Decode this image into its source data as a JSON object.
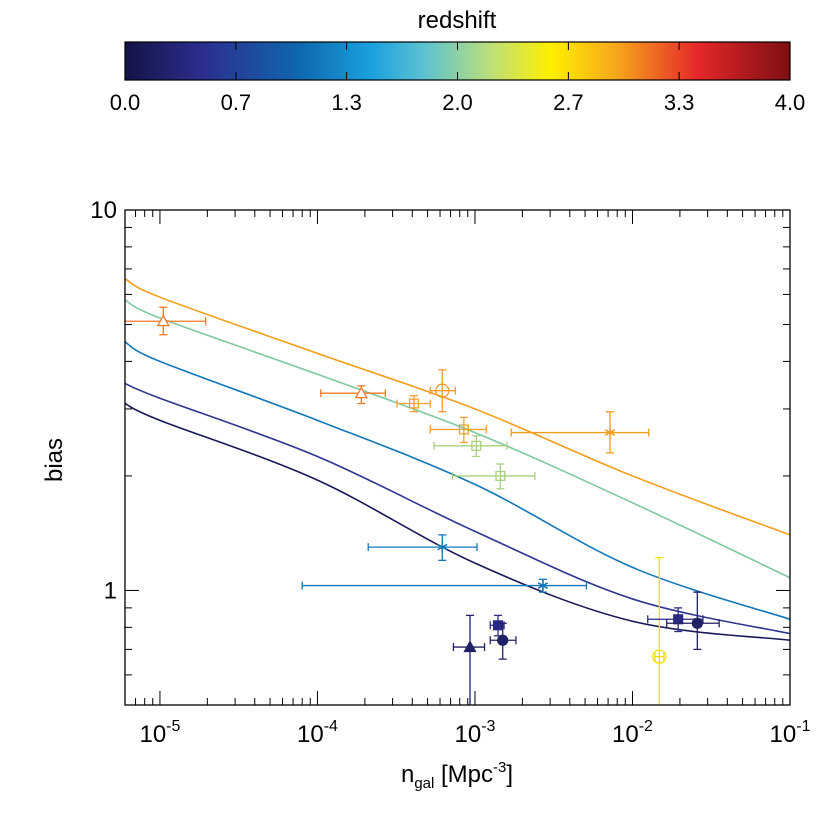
{
  "chart_data": {
    "type": "scatter",
    "title": "",
    "xlabel": "n",
    "xlabel_sub": "gal",
    "xlabel_unit_prefix": " [Mpc",
    "xlabel_unit_exp": "-3",
    "xlabel_unit_suffix": "]",
    "ylabel": "bias",
    "xscale": "log",
    "yscale": "log",
    "xlim": [
      6e-06,
      0.1
    ],
    "ylim": [
      0.5,
      10
    ],
    "x_ticks": [
      {
        "base": "10",
        "exp": "-5",
        "value": 1e-05
      },
      {
        "base": "10",
        "exp": "-4",
        "value": 0.0001
      },
      {
        "base": "10",
        "exp": "-3",
        "value": 0.001
      },
      {
        "base": "10",
        "exp": "-2",
        "value": 0.01
      },
      {
        "base": "10",
        "exp": "-1",
        "value": 0.1
      }
    ],
    "y_ticks": [
      {
        "label": "1",
        "value": 1
      },
      {
        "label": "10",
        "value": 10
      }
    ],
    "colorbar": {
      "label": "redshift",
      "range": [
        0,
        4
      ],
      "tick_labels": [
        "0.0",
        "0.7",
        "1.3",
        "2.0",
        "2.7",
        "3.3",
        "4.0"
      ],
      "tick_values": [
        0,
        0.667,
        1.333,
        2.0,
        2.667,
        3.333,
        4.0
      ]
    },
    "curves": [
      {
        "color": "#f39c1a",
        "points": [
          [
            6e-06,
            6.6
          ],
          [
            1e-05,
            5.9
          ],
          [
            0.0001,
            4.2
          ],
          [
            0.001,
            3.0
          ],
          [
            0.01,
            2.0
          ],
          [
            0.1,
            1.4
          ]
        ]
      },
      {
        "color": "#7fc8a0",
        "points": [
          [
            6e-06,
            5.8
          ],
          [
            1e-05,
            5.2
          ],
          [
            0.0001,
            3.7
          ],
          [
            0.001,
            2.6
          ],
          [
            0.01,
            1.7
          ],
          [
            0.1,
            1.08
          ]
        ]
      },
      {
        "color": "#1177b8",
        "points": [
          [
            6e-06,
            4.5
          ],
          [
            1e-05,
            4.0
          ],
          [
            0.0001,
            2.8
          ],
          [
            0.001,
            1.9
          ],
          [
            0.01,
            1.15
          ],
          [
            0.1,
            0.84
          ]
        ]
      },
      {
        "color": "#2e3590",
        "points": [
          [
            6e-06,
            3.5
          ],
          [
            1e-05,
            3.2
          ],
          [
            0.0001,
            2.25
          ],
          [
            0.001,
            1.43
          ],
          [
            0.01,
            0.95
          ],
          [
            0.1,
            0.77
          ]
        ]
      },
      {
        "color": "#181858",
        "points": [
          [
            6e-06,
            3.1
          ],
          [
            1e-05,
            2.8
          ],
          [
            0.0001,
            1.95
          ],
          [
            0.001,
            1.18
          ],
          [
            0.01,
            0.83
          ],
          [
            0.1,
            0.74
          ]
        ]
      }
    ],
    "points": [
      {
        "x": 1.05e-05,
        "y": 5.1,
        "xlo": 5.8e-06,
        "xhi": 1.95e-05,
        "ylo": 4.7,
        "yhi": 5.55,
        "marker": "triangle-open",
        "color": "#f07a2a"
      },
      {
        "x": 0.00019,
        "y": 3.3,
        "xlo": 0.000105,
        "xhi": 0.00027,
        "ylo": 3.1,
        "yhi": 3.45,
        "marker": "triangle-open",
        "color": "#f07a2a"
      },
      {
        "x": 0.00062,
        "y": 3.35,
        "xlo": 0.00052,
        "xhi": 0.00075,
        "ylo": 2.95,
        "yhi": 3.8,
        "marker": "circle-open",
        "color": "#f59a2c"
      },
      {
        "x": 0.00041,
        "y": 3.1,
        "xlo": 0.00032,
        "xhi": 0.00052,
        "ylo": 2.95,
        "yhi": 3.25,
        "marker": "square-open",
        "color": "#f5a030"
      },
      {
        "x": 0.00085,
        "y": 2.65,
        "xlo": 0.00052,
        "xhi": 0.00118,
        "ylo": 2.45,
        "yhi": 2.85,
        "marker": "square-open",
        "color": "#f5a030"
      },
      {
        "x": 0.0072,
        "y": 2.6,
        "xlo": 0.0017,
        "xhi": 0.0127,
        "ylo": 2.3,
        "yhi": 2.95,
        "marker": "star",
        "color": "#f39c1a"
      },
      {
        "x": 0.00102,
        "y": 2.4,
        "xlo": 0.00055,
        "xhi": 0.0016,
        "ylo": 2.25,
        "yhi": 2.55,
        "marker": "square-open",
        "color": "#a8d080"
      },
      {
        "x": 0.00145,
        "y": 2.0,
        "xlo": 0.00072,
        "xhi": 0.0024,
        "ylo": 1.85,
        "yhi": 2.15,
        "marker": "square-open",
        "color": "#a8d080"
      },
      {
        "x": 0.00062,
        "y": 1.3,
        "xlo": 0.00021,
        "xhi": 0.00103,
        "ylo": 1.2,
        "yhi": 1.4,
        "marker": "star",
        "color": "#1177b8"
      },
      {
        "x": 0.0027,
        "y": 1.03,
        "xlo": 8e-05,
        "xhi": 0.0051,
        "ylo": 0.99,
        "yhi": 1.07,
        "marker": "star",
        "color": "#1177b8"
      },
      {
        "x": 0.0148,
        "y": 0.67,
        "xlo": 0.0139,
        "xhi": 0.0158,
        "ylo": 0.5,
        "yhi": 1.22,
        "marker": "circle-open",
        "color": "#f5e000"
      },
      {
        "x": 0.00093,
        "y": 0.71,
        "xlo": 0.00073,
        "xhi": 0.00115,
        "ylo": 0.5,
        "yhi": 0.86,
        "marker": "triangle-filled",
        "color": "#202065"
      },
      {
        "x": 0.0014,
        "y": 0.81,
        "xlo": 0.00125,
        "xhi": 0.00153,
        "ylo": 0.76,
        "yhi": 0.86,
        "marker": "square-filled",
        "color": "#2a2a85"
      },
      {
        "x": 0.0015,
        "y": 0.74,
        "xlo": 0.00125,
        "xhi": 0.00182,
        "ylo": 0.66,
        "yhi": 0.82,
        "marker": "circle-filled",
        "color": "#202065"
      },
      {
        "x": 0.0195,
        "y": 0.84,
        "xlo": 0.0125,
        "xhi": 0.028,
        "ylo": 0.78,
        "yhi": 0.9,
        "marker": "square-filled",
        "color": "#2a2a85"
      },
      {
        "x": 0.0258,
        "y": 0.82,
        "xlo": 0.0165,
        "xhi": 0.0355,
        "ylo": 0.7,
        "yhi": 0.99,
        "marker": "circle-filled",
        "color": "#202065"
      }
    ]
  }
}
